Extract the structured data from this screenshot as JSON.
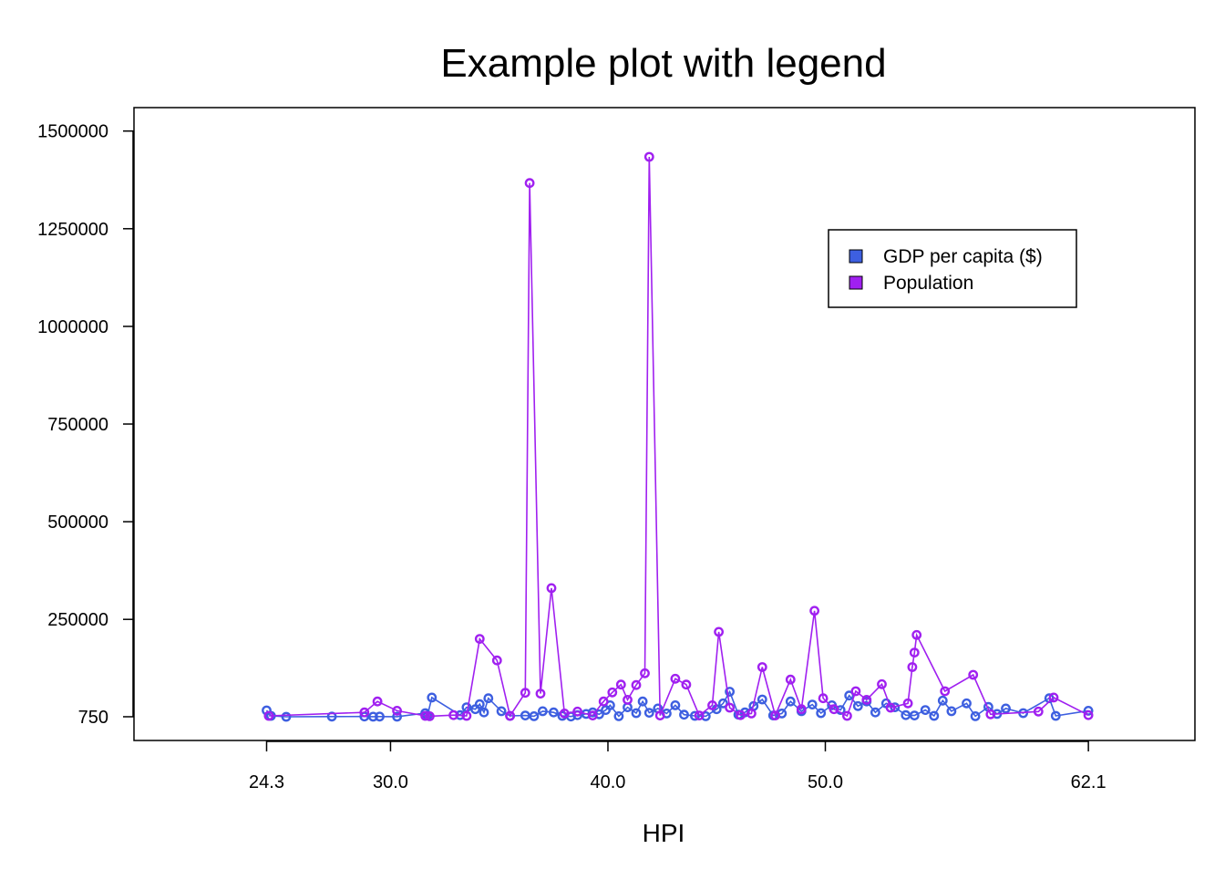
{
  "chart_data": {
    "type": "line",
    "title": "Example plot with legend",
    "xlabel": "HPI",
    "ylabel": "",
    "x_ticks": [
      24.3,
      30.0,
      40.0,
      50.0,
      62.1
    ],
    "x_tick_labels": [
      "24.3",
      "30.0",
      "40.0",
      "50.0",
      "62.1"
    ],
    "y_ticks": [
      750,
      250000,
      500000,
      750000,
      1000000,
      1250000,
      1500000
    ],
    "y_tick_labels": [
      "750",
      "250000",
      "500000",
      "750000",
      "1000000",
      "1250000",
      "1500000"
    ],
    "xlim": [
      18.2,
      67.0
    ],
    "ylim": [
      -60000,
      1560000
    ],
    "legend_position": "top-right",
    "grid": false,
    "markers": "open-circle",
    "series": [
      {
        "name": "GDP per capita ($)",
        "color": "#3d5fe0",
        "x": [
          24.3,
          24.5,
          25.2,
          27.3,
          28.8,
          29.2,
          29.5,
          30.3,
          31.6,
          31.7,
          31.9,
          33.2,
          33.5,
          33.9,
          34.1,
          34.3,
          34.5,
          35.1,
          35.5,
          36.2,
          36.6,
          37.0,
          37.5,
          37.9,
          38.3,
          38.6,
          39.0,
          39.3,
          39.6,
          39.9,
          40.1,
          40.5,
          40.9,
          41.3,
          41.6,
          41.9,
          42.3,
          42.7,
          43.1,
          43.5,
          44.0,
          44.5,
          45.0,
          45.3,
          45.6,
          46.0,
          46.3,
          46.7,
          47.1,
          47.6,
          48.0,
          48.4,
          48.9,
          49.4,
          49.8,
          50.3,
          50.7,
          51.1,
          51.5,
          51.9,
          52.3,
          52.8,
          53.2,
          53.7,
          54.1,
          54.6,
          55.0,
          55.4,
          55.8,
          56.5,
          56.9,
          57.5,
          57.9,
          58.3,
          59.1,
          60.3,
          60.6,
          62.1
        ],
        "values": [
          17000,
          3000,
          800,
          1200,
          1500,
          900,
          1100,
          900,
          10000,
          4000,
          50000,
          5000,
          25000,
          20000,
          33000,
          12000,
          48000,
          15000,
          3000,
          4000,
          2000,
          15000,
          12000,
          3000,
          1500,
          5000,
          8000,
          12000,
          7000,
          18000,
          30000,
          2000,
          25000,
          10000,
          40000,
          11000,
          22000,
          9000,
          30000,
          6000,
          3000,
          2000,
          20000,
          35000,
          65000,
          6000,
          12000,
          28000,
          45000,
          4000,
          9000,
          40000,
          15000,
          32000,
          10000,
          30000,
          18000,
          55000,
          28000,
          40000,
          12000,
          35000,
          25000,
          5000,
          4000,
          18000,
          3000,
          42000,
          15000,
          35000,
          2000,
          26000,
          8000,
          22000,
          10000,
          48000,
          3000,
          16000
        ]
      },
      {
        "name": "Population",
        "color": "#a020f0",
        "x": [
          24.4,
          28.8,
          29.4,
          30.3,
          31.6,
          31.8,
          32.9,
          33.5,
          34.1,
          34.9,
          35.5,
          36.2,
          36.4,
          36.9,
          37.4,
          38.0,
          38.6,
          39.3,
          39.8,
          40.2,
          40.6,
          40.9,
          41.3,
          41.7,
          41.9,
          42.4,
          43.1,
          43.6,
          44.2,
          44.8,
          45.1,
          45.6,
          46.1,
          46.6,
          47.1,
          47.7,
          48.4,
          48.9,
          49.5,
          49.9,
          50.4,
          51.0,
          51.4,
          51.9,
          52.6,
          53.0,
          53.8,
          54.0,
          54.1,
          54.2,
          55.5,
          56.8,
          57.6,
          59.8,
          60.5,
          62.1
        ],
        "values": [
          3000,
          12000,
          40000,
          16000,
          3000,
          2000,
          5000,
          3000,
          200000,
          145000,
          3000,
          62000,
          1367000,
          60000,
          330000,
          9000,
          14000,
          4000,
          40000,
          63000,
          83000,
          44000,
          82000,
          112000,
          1434000,
          4000,
          98000,
          83000,
          4000,
          30000,
          218000,
          24000,
          5000,
          9000,
          128000,
          4000,
          96000,
          20000,
          272000,
          48000,
          20000,
          3000,
          66000,
          44000,
          84000,
          24000,
          35000,
          128000,
          165000,
          210000,
          66000,
          108000,
          7000,
          14000,
          50000,
          5000
        ]
      }
    ]
  }
}
